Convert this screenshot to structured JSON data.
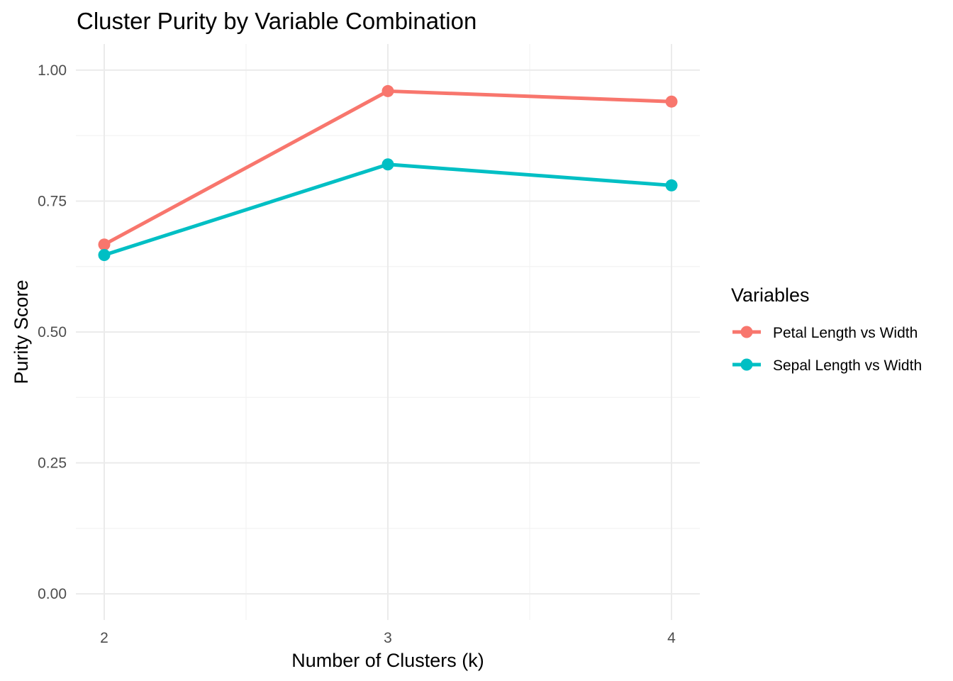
{
  "chart_data": {
    "type": "line",
    "title": "Cluster Purity by Variable Combination",
    "xlabel": "Number of Clusters (k)",
    "ylabel": "Purity Score",
    "x": [
      2,
      3,
      4
    ],
    "x_tick_labels": [
      "2",
      "3",
      "4"
    ],
    "y_tick_labels": [
      "0.00",
      "0.25",
      "0.50",
      "0.75",
      "1.00"
    ],
    "y_ticks": [
      0,
      0.25,
      0.5,
      0.75,
      1.0
    ],
    "xlim": [
      1.9,
      4.1
    ],
    "ylim": [
      -0.05,
      1.05
    ],
    "grid": true,
    "legend": {
      "title": "Variables",
      "position": "right"
    },
    "series": [
      {
        "name": "Petal Length vs Width",
        "color": "#F8766D",
        "values": [
          0.667,
          0.96,
          0.94
        ]
      },
      {
        "name": "Sepal Length vs Width",
        "color": "#00BFC4",
        "values": [
          0.647,
          0.82,
          0.78
        ]
      }
    ]
  }
}
